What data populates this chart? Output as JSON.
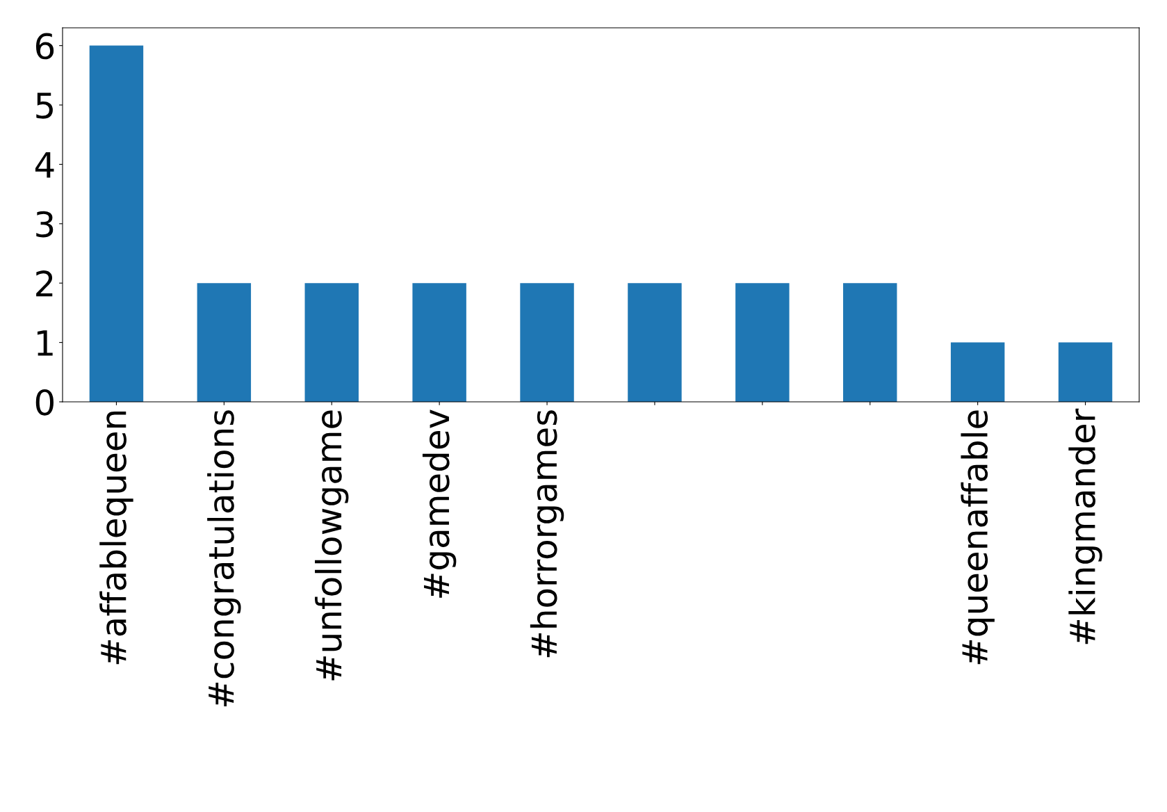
{
  "chart_data": {
    "type": "bar",
    "categories": [
      "#affablequeen",
      "#congratulations",
      "#unfollowgame",
      "#gamedev",
      "#horrorgames",
      null,
      null,
      null,
      "#queenaffable",
      "#kingmander"
    ],
    "values": [
      6,
      2,
      2,
      2,
      2,
      2,
      2,
      2,
      1,
      1
    ],
    "color": "#1f77b4",
    "ylim": [
      0,
      6.3
    ],
    "yticks": [
      0,
      1,
      2,
      3,
      4,
      5,
      6
    ],
    "grid": false,
    "legend": false
  }
}
